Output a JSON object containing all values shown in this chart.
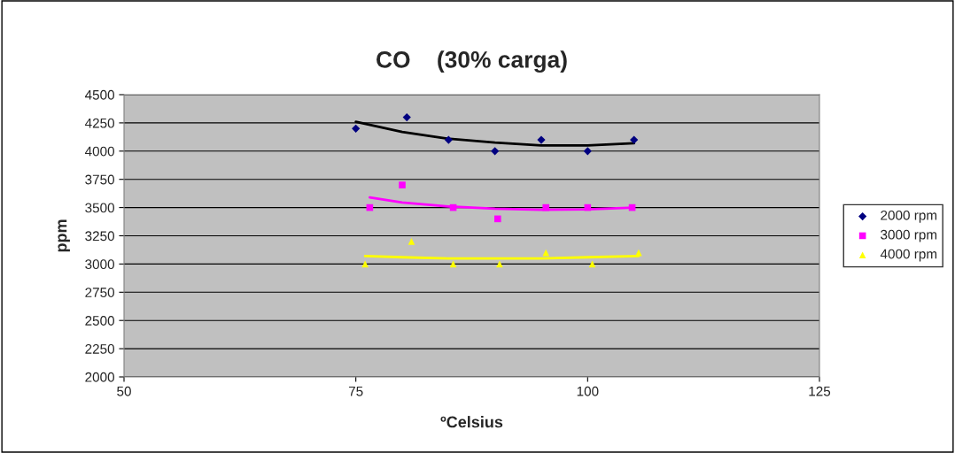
{
  "chart_data": {
    "type": "scatter",
    "title": "CO    (30% carga)",
    "xlabel": "ºCelsius",
    "ylabel": "ppm",
    "xlim": [
      50,
      125
    ],
    "xticks": [
      50,
      75,
      100,
      125
    ],
    "ylim": [
      2000,
      4500
    ],
    "yticks": [
      2000,
      2250,
      2500,
      2750,
      3000,
      3250,
      3500,
      3750,
      4000,
      4250,
      4500
    ],
    "grid": "y",
    "legend": "right",
    "series": [
      {
        "name": "2000 rpm",
        "marker": "diamond",
        "color": "#000080",
        "x": [
          75,
          80.5,
          85,
          90,
          95,
          100,
          105
        ],
        "values": [
          4200,
          4300,
          4100,
          4000,
          4100,
          4000,
          4100
        ]
      },
      {
        "name": "3000 rpm",
        "marker": "square",
        "color": "#ff00ff",
        "x": [
          76.5,
          80,
          85.5,
          90.3,
          95.5,
          100,
          104.8
        ],
        "values": [
          3500,
          3700,
          3500,
          3400,
          3500,
          3500,
          3500
        ]
      },
      {
        "name": "4000 rpm",
        "marker": "triangle",
        "color": "#ffff00",
        "x": [
          76,
          81,
          85.5,
          90.5,
          95.5,
          100.5,
          105.5
        ],
        "values": [
          3000,
          3200,
          3000,
          3000,
          3100,
          3000,
          3100
        ]
      },
      {
        "type": "line",
        "color": "#000000",
        "x": [
          75,
          80,
          85,
          90,
          95,
          100,
          105
        ],
        "values": [
          4260,
          4170,
          4110,
          4075,
          4050,
          4050,
          4070
        ]
      },
      {
        "type": "line",
        "color": "#ff00ff",
        "x": [
          76.5,
          80,
          85,
          90,
          95,
          100,
          105
        ],
        "values": [
          3590,
          3545,
          3510,
          3490,
          3480,
          3485,
          3500
        ]
      },
      {
        "type": "line",
        "color": "#ffff00",
        "x": [
          76,
          80,
          85,
          90,
          95,
          100,
          105.5
        ],
        "values": [
          3070,
          3060,
          3050,
          3050,
          3050,
          3060,
          3070
        ]
      }
    ]
  }
}
